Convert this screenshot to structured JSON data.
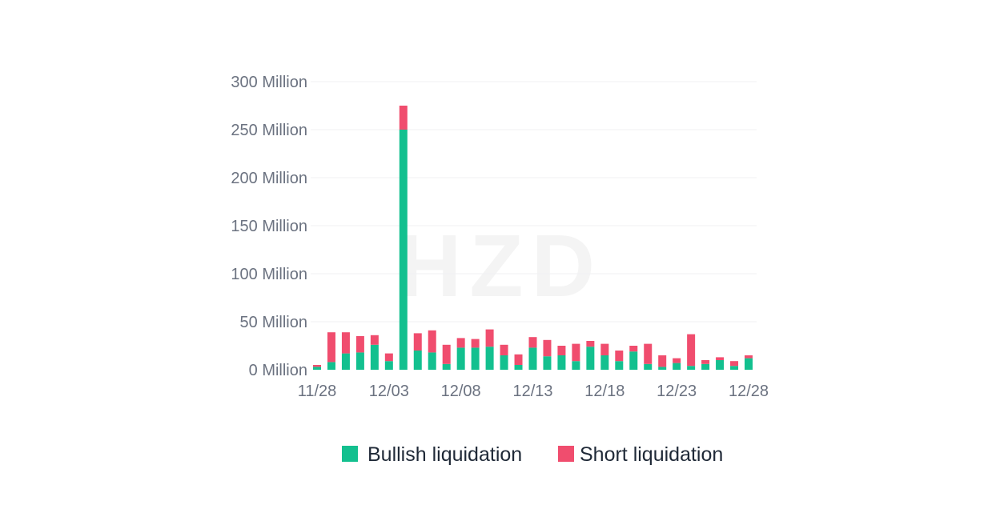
{
  "chart_data": {
    "type": "bar",
    "stacked": true,
    "title": "",
    "xlabel": "",
    "ylabel": "",
    "ylim": [
      0,
      300000000
    ],
    "y_ticks": [
      {
        "value": 0,
        "label": "0 Million"
      },
      {
        "value": 50000000,
        "label": "50 Million"
      },
      {
        "value": 100000000,
        "label": "100 Million"
      },
      {
        "value": 150000000,
        "label": "150 Million"
      },
      {
        "value": 200000000,
        "label": "200 Million"
      },
      {
        "value": 250000000,
        "label": "250 Million"
      },
      {
        "value": 300000000,
        "label": "300 Million"
      }
    ],
    "grid": true,
    "legend_position": "bottom",
    "x_tick_labels": [
      "11/28",
      "12/03",
      "12/08",
      "12/13",
      "12/18",
      "12/23",
      "12/28"
    ],
    "categories": [
      "11/28",
      "11/29",
      "11/30",
      "12/01",
      "12/02",
      "12/03",
      "12/04",
      "12/05",
      "12/06",
      "12/07",
      "12/08",
      "12/09",
      "12/10",
      "12/11",
      "12/12",
      "12/13",
      "12/14",
      "12/15",
      "12/16",
      "12/17",
      "12/18",
      "12/19",
      "12/20",
      "12/21",
      "12/22",
      "12/23",
      "12/24",
      "12/25",
      "12/26",
      "12/27",
      "12/28"
    ],
    "series": [
      {
        "name": "Bullish liquidation",
        "color": "#13c08f",
        "values": [
          3000000,
          8000000,
          17000000,
          18000000,
          26000000,
          9000000,
          250000000,
          20000000,
          18000000,
          6000000,
          23000000,
          23000000,
          24000000,
          15000000,
          5000000,
          23000000,
          14000000,
          15000000,
          9000000,
          24000000,
          15000000,
          9000000,
          19000000,
          6000000,
          3000000,
          7000000,
          4000000,
          6000000,
          10000000,
          4000000,
          12000000
        ]
      },
      {
        "name": "Short liquidation",
        "color": "#f04d6e",
        "values": [
          2000000,
          31000000,
          22000000,
          17000000,
          10000000,
          8000000,
          25000000,
          18000000,
          23000000,
          20000000,
          10000000,
          9000000,
          18000000,
          11000000,
          11000000,
          11000000,
          17000000,
          10000000,
          18000000,
          6000000,
          12000000,
          11000000,
          6000000,
          21000000,
          12000000,
          5000000,
          33000000,
          4000000,
          3000000,
          5000000,
          3000000
        ]
      }
    ],
    "watermark": "HZD"
  }
}
